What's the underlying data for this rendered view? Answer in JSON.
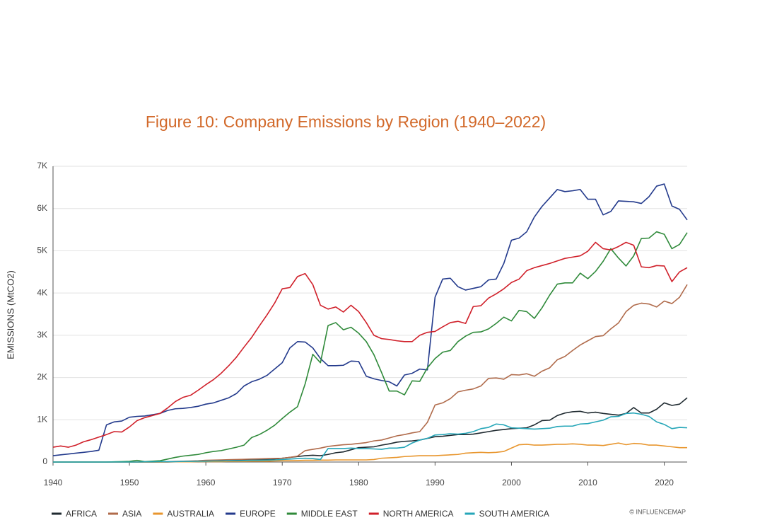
{
  "chart_data": {
    "type": "line",
    "title": "Figure 10: Company Emissions by Region (1940–2022)",
    "y_label": "EMISSIONS (MtCO2)",
    "credit": "© INFLUENCEMAP",
    "grid": true,
    "legend": "bottom",
    "xlim": [
      1940,
      2023
    ],
    "xticks": [
      1940,
      1950,
      1960,
      1970,
      1980,
      1990,
      2000,
      2010,
      2020
    ],
    "ylim": [
      0,
      7000
    ],
    "yticks": [
      0,
      {
        "value": 1000,
        "label": "1K"
      },
      {
        "value": 2000,
        "label": "2K"
      },
      {
        "value": 3000,
        "label": "3K"
      },
      {
        "value": 4000,
        "label": "4K"
      },
      {
        "value": 5000,
        "label": "5K"
      },
      {
        "value": 6000,
        "label": "6K"
      },
      {
        "value": 7000,
        "label": "7K"
      }
    ],
    "x": [
      1940,
      1941,
      1942,
      1943,
      1944,
      1945,
      1946,
      1947,
      1948,
      1949,
      1950,
      1951,
      1952,
      1953,
      1954,
      1955,
      1956,
      1957,
      1958,
      1959,
      1960,
      1961,
      1962,
      1963,
      1964,
      1965,
      1966,
      1967,
      1968,
      1969,
      1970,
      1971,
      1972,
      1973,
      1974,
      1975,
      1976,
      1977,
      1978,
      1979,
      1980,
      1981,
      1982,
      1983,
      1984,
      1985,
      1986,
      1987,
      1988,
      1989,
      1990,
      1991,
      1992,
      1993,
      1994,
      1995,
      1996,
      1997,
      1998,
      1999,
      2000,
      2001,
      2002,
      2003,
      2004,
      2005,
      2006,
      2007,
      2008,
      2009,
      2010,
      2011,
      2012,
      2013,
      2014,
      2015,
      2016,
      2017,
      2018,
      2019,
      2020,
      2021,
      2022,
      2023
    ],
    "series": [
      {
        "name": "AFRICA",
        "color": "#1f2a30",
        "values": [
          0,
          0,
          0,
          0,
          0,
          0,
          0,
          0,
          0,
          0,
          0,
          0,
          0,
          0,
          0,
          0,
          5,
          5,
          10,
          10,
          20,
          25,
          30,
          35,
          40,
          45,
          50,
          55,
          60,
          70,
          90,
          110,
          130,
          150,
          160,
          150,
          180,
          220,
          240,
          290,
          340,
          350,
          360,
          400,
          430,
          470,
          490,
          500,
          520,
          560,
          600,
          610,
          630,
          650,
          650,
          660,
          690,
          720,
          750,
          770,
          790,
          800,
          810,
          880,
          980,
          990,
          1100,
          1160,
          1190,
          1200,
          1160,
          1180,
          1150,
          1130,
          1110,
          1150,
          1290,
          1160,
          1160,
          1250,
          1400,
          1340,
          1370,
          1520
        ]
      },
      {
        "name": "ASIA",
        "color": "#b06b4b",
        "values": [
          0,
          0,
          0,
          0,
          0,
          0,
          0,
          0,
          0,
          0,
          0,
          0,
          0,
          0,
          5,
          10,
          15,
          20,
          25,
          30,
          40,
          45,
          50,
          55,
          60,
          65,
          70,
          75,
          80,
          85,
          90,
          110,
          140,
          270,
          300,
          330,
          370,
          390,
          410,
          420,
          440,
          460,
          500,
          520,
          570,
          620,
          650,
          690,
          720,
          940,
          1350,
          1400,
          1500,
          1660,
          1700,
          1730,
          1800,
          1980,
          1990,
          1960,
          2070,
          2060,
          2090,
          2030,
          2150,
          2230,
          2420,
          2500,
          2640,
          2770,
          2870,
          2970,
          2990,
          3150,
          3290,
          3560,
          3710,
          3760,
          3740,
          3670,
          3810,
          3750,
          3900,
          4200
        ]
      },
      {
        "name": "AUSTRALIA",
        "color": "#e8962e",
        "values": [
          0,
          0,
          0,
          0,
          0,
          0,
          0,
          0,
          0,
          0,
          0,
          0,
          0,
          0,
          0,
          5,
          5,
          5,
          5,
          10,
          10,
          10,
          10,
          15,
          15,
          15,
          20,
          20,
          20,
          25,
          30,
          30,
          35,
          40,
          40,
          45,
          45,
          50,
          50,
          50,
          50,
          50,
          60,
          90,
          100,
          110,
          130,
          140,
          150,
          150,
          150,
          160,
          170,
          180,
          210,
          220,
          230,
          220,
          230,
          250,
          330,
          410,
          420,
          400,
          400,
          410,
          420,
          420,
          430,
          420,
          400,
          400,
          390,
          420,
          450,
          410,
          440,
          430,
          400,
          400,
          380,
          360,
          340,
          340
        ]
      },
      {
        "name": "EUROPE",
        "color": "#233a8c",
        "values": [
          150,
          170,
          190,
          210,
          230,
          250,
          280,
          880,
          950,
          970,
          1060,
          1080,
          1090,
          1120,
          1150,
          1220,
          1260,
          1270,
          1290,
          1320,
          1370,
          1400,
          1460,
          1520,
          1620,
          1800,
          1900,
          1960,
          2050,
          2200,
          2350,
          2700,
          2850,
          2840,
          2700,
          2450,
          2280,
          2280,
          2290,
          2390,
          2380,
          2030,
          1970,
          1930,
          1900,
          1800,
          2060,
          2100,
          2200,
          2180,
          3900,
          4330,
          4350,
          4150,
          4070,
          4110,
          4150,
          4310,
          4330,
          4700,
          5250,
          5300,
          5450,
          5800,
          6050,
          6250,
          6450,
          6400,
          6420,
          6450,
          6220,
          6220,
          5850,
          5930,
          6180,
          6170,
          6160,
          6120,
          6280,
          6530,
          6580,
          6060,
          5980,
          5730
        ]
      },
      {
        "name": "MIDDLE EAST",
        "color": "#2f8a3a",
        "values": [
          0,
          0,
          0,
          0,
          0,
          0,
          0,
          0,
          5,
          10,
          15,
          40,
          10,
          20,
          30,
          70,
          110,
          140,
          160,
          180,
          220,
          250,
          270,
          310,
          350,
          400,
          580,
          650,
          750,
          870,
          1030,
          1180,
          1310,
          1850,
          2550,
          2350,
          3230,
          3300,
          3130,
          3190,
          3050,
          2850,
          2540,
          2120,
          1680,
          1680,
          1590,
          1920,
          1910,
          2230,
          2450,
          2600,
          2640,
          2850,
          2980,
          3070,
          3080,
          3150,
          3280,
          3430,
          3340,
          3590,
          3560,
          3400,
          3650,
          3950,
          4210,
          4240,
          4240,
          4470,
          4340,
          4510,
          4750,
          5050,
          4830,
          4640,
          4880,
          5290,
          5300,
          5450,
          5390,
          5050,
          5150,
          5430
        ]
      },
      {
        "name": "NORTH AMERICA",
        "color": "#d0202a",
        "values": [
          350,
          380,
          350,
          400,
          480,
          530,
          590,
          650,
          720,
          710,
          830,
          980,
          1050,
          1100,
          1150,
          1280,
          1430,
          1530,
          1580,
          1700,
          1830,
          1950,
          2100,
          2280,
          2480,
          2720,
          2950,
          3220,
          3480,
          3760,
          4100,
          4130,
          4390,
          4460,
          4200,
          3710,
          3620,
          3670,
          3550,
          3710,
          3560,
          3300,
          3000,
          2920,
          2900,
          2870,
          2850,
          2850,
          3000,
          3070,
          3090,
          3200,
          3300,
          3330,
          3280,
          3680,
          3700,
          3880,
          3980,
          4100,
          4250,
          4330,
          4530,
          4600,
          4650,
          4700,
          4760,
          4820,
          4850,
          4880,
          4990,
          5200,
          5050,
          5020,
          5100,
          5200,
          5130,
          4620,
          4600,
          4650,
          4640,
          4270,
          4500,
          4600
        ]
      },
      {
        "name": "SOUTH AMERICA",
        "color": "#25a6b8",
        "values": [
          0,
          0,
          0,
          0,
          0,
          0,
          0,
          0,
          0,
          0,
          0,
          0,
          5,
          5,
          10,
          10,
          10,
          15,
          15,
          20,
          20,
          25,
          25,
          30,
          30,
          35,
          40,
          40,
          45,
          50,
          60,
          70,
          80,
          90,
          80,
          60,
          320,
          320,
          320,
          330,
          320,
          320,
          310,
          300,
          330,
          330,
          350,
          450,
          520,
          560,
          640,
          650,
          670,
          660,
          680,
          720,
          790,
          820,
          900,
          880,
          810,
          800,
          790,
          780,
          790,
          800,
          840,
          850,
          850,
          900,
          910,
          950,
          990,
          1070,
          1080,
          1150,
          1160,
          1130,
          1080,
          950,
          890,
          790,
          820,
          810
        ]
      }
    ]
  }
}
